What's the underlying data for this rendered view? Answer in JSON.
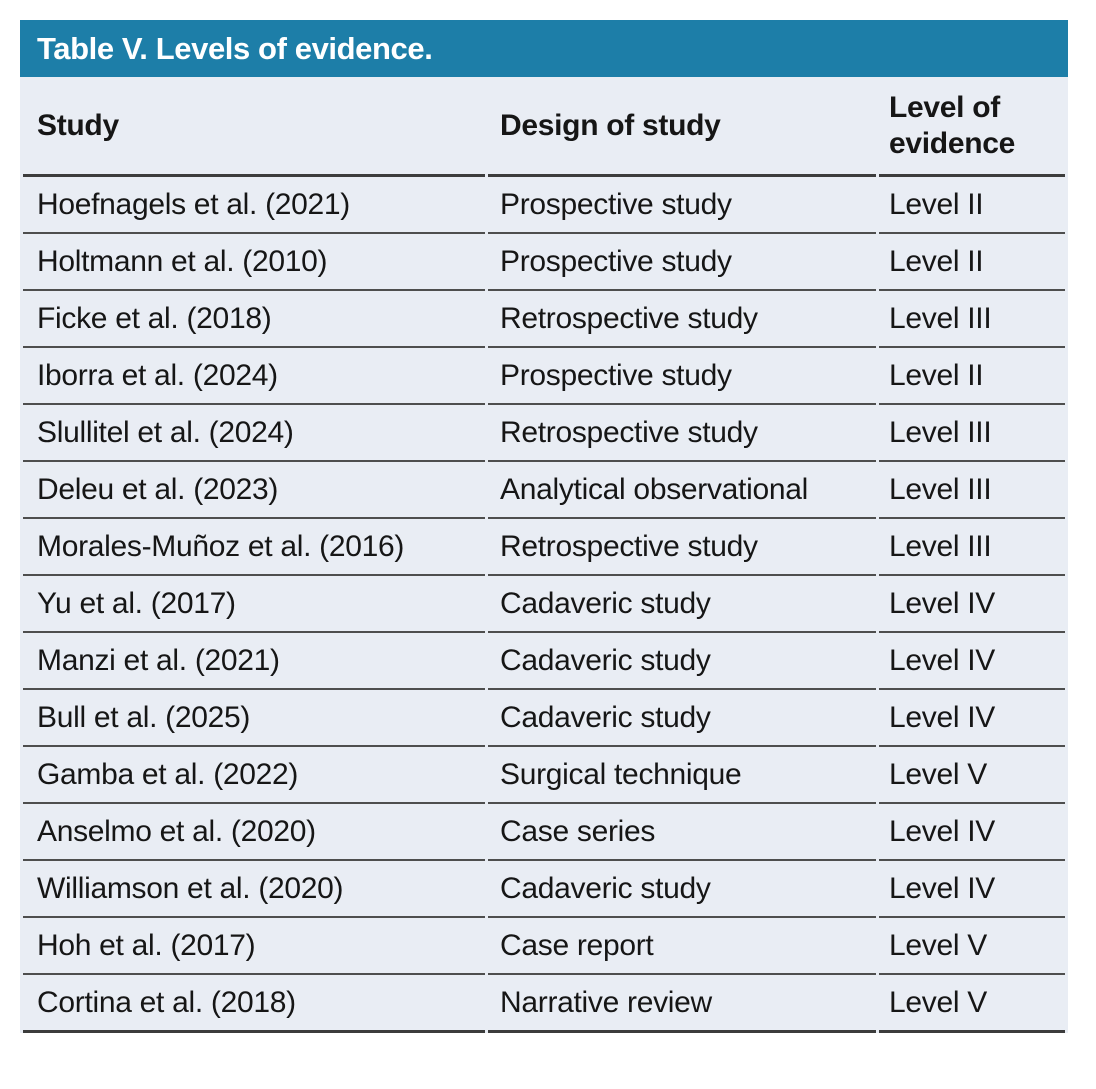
{
  "table": {
    "title": "Table V. Levels of evidence.",
    "columns": {
      "study": "Study",
      "design": "Design of study",
      "level": "Level of evidence"
    },
    "rows": [
      {
        "study": "Hoefnagels et al. (2021)",
        "design": "Prospective study",
        "level": "Level II"
      },
      {
        "study": "Holtmann et al. (2010)",
        "design": "Prospective study",
        "level": "Level II"
      },
      {
        "study": "Ficke et al. (2018)",
        "design": "Retrospective study",
        "level": "Level III"
      },
      {
        "study": "Iborra et al. (2024)",
        "design": "Prospective study",
        "level": "Level II"
      },
      {
        "study": "Slullitel et al. (2024)",
        "design": "Retrospective study",
        "level": "Level III"
      },
      {
        "study": "Deleu et al. (2023)",
        "design": "Analytical observational",
        "level": "Level III"
      },
      {
        "study": "Morales-Muñoz et al. (2016)",
        "design": "Retrospective study",
        "level": "Level III"
      },
      {
        "study": "Yu et al. (2017)",
        "design": "Cadaveric study",
        "level": "Level IV"
      },
      {
        "study": "Manzi et al. (2021)",
        "design": "Cadaveric study",
        "level": "Level IV"
      },
      {
        "study": "Bull et al. (2025)",
        "design": "Cadaveric study",
        "level": "Level IV"
      },
      {
        "study": "Gamba et al. (2022)",
        "design": "Surgical technique",
        "level": "Level V"
      },
      {
        "study": "Anselmo et al. (2020)",
        "design": "Case series",
        "level": "Level IV"
      },
      {
        "study": "Williamson et al. (2020)",
        "design": "Cadaveric study",
        "level": "Level IV"
      },
      {
        "study": "Hoh et al. (2017)",
        "design": "Case report",
        "level": "Level V"
      },
      {
        "study": "Cortina et al. (2018)",
        "design": "Narrative review",
        "level": "Level V"
      }
    ],
    "colors": {
      "title_bar_bg": "#1d7ea8",
      "title_text": "#ffffff",
      "row_bg": "#e9edf4",
      "border_dark": "#3c3c3c",
      "border_row": "#4e4e4e",
      "body_text": "#161616"
    }
  }
}
